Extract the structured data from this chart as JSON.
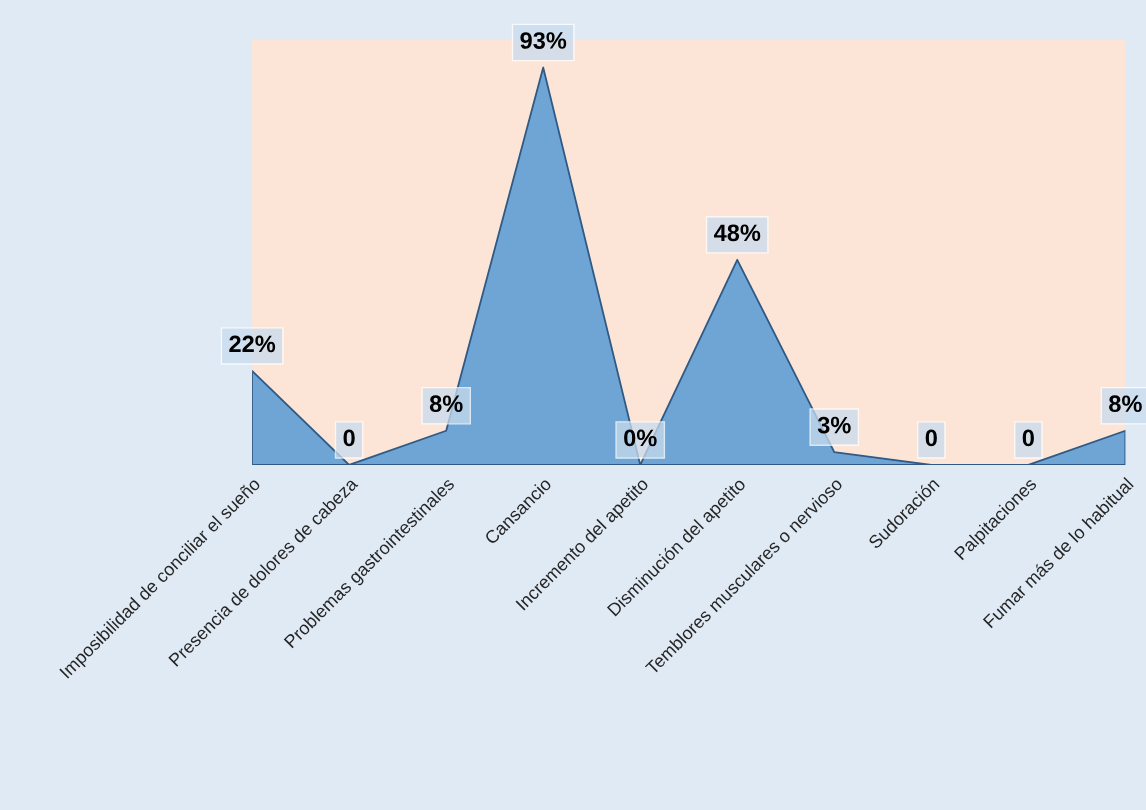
{
  "chart_data": {
    "type": "area",
    "categories": [
      "Imposibilidad de conciliar el sueño",
      "Presencia de dolores de cabeza",
      "Problemas gastrointestinales",
      "Cansancio",
      "Incremento del apetito",
      "Disminución del apetito",
      "Temblores musculares o nervioso",
      "Sudoración",
      "Palpitaciones",
      "Fumar más de lo habitual"
    ],
    "values": [
      22,
      0,
      8,
      93,
      0,
      48,
      3,
      0,
      0,
      8
    ],
    "value_labels": [
      "22%",
      "0",
      "8%",
      "93%",
      "0%",
      "48%",
      "3%",
      "0",
      "0",
      "8%"
    ],
    "color": "#6fa5d5",
    "grid": false,
    "legend": false
  }
}
